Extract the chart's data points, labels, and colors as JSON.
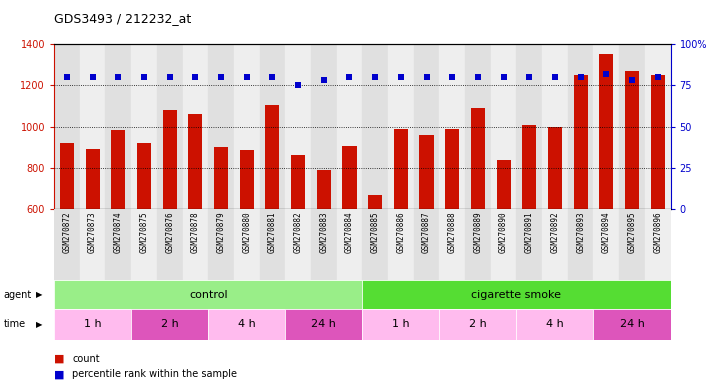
{
  "title": "GDS3493 / 212232_at",
  "samples": [
    "GSM270872",
    "GSM270873",
    "GSM270874",
    "GSM270875",
    "GSM270876",
    "GSM270878",
    "GSM270879",
    "GSM270880",
    "GSM270881",
    "GSM270882",
    "GSM270883",
    "GSM270884",
    "GSM270885",
    "GSM270886",
    "GSM270887",
    "GSM270888",
    "GSM270889",
    "GSM270890",
    "GSM270891",
    "GSM270892",
    "GSM270893",
    "GSM270894",
    "GSM270895",
    "GSM270896"
  ],
  "counts": [
    920,
    890,
    985,
    920,
    1080,
    1060,
    900,
    885,
    1105,
    865,
    790,
    905,
    670,
    990,
    960,
    990,
    1090,
    840,
    1010,
    1000,
    1250,
    1350,
    1270,
    1250
  ],
  "percentiles": [
    80,
    80,
    80,
    80,
    80,
    80,
    80,
    80,
    80,
    75,
    78,
    80,
    80,
    80,
    80,
    80,
    80,
    80,
    80,
    80,
    80,
    82,
    78,
    80
  ],
  "bar_color": "#cc1100",
  "dot_color": "#0000cc",
  "ylim_left": [
    600,
    1400
  ],
  "ylim_right": [
    0,
    100
  ],
  "yticks_left": [
    600,
    800,
    1000,
    1200,
    1400
  ],
  "yticks_right": [
    0,
    25,
    50,
    75,
    100
  ],
  "ytick_labels_right": [
    "0",
    "25",
    "50",
    "75",
    "100%"
  ],
  "gridlines": [
    800,
    1000,
    1200
  ],
  "agent_groups": [
    {
      "text": "control",
      "start": 0,
      "end": 12,
      "color": "#99ee88"
    },
    {
      "text": "cigarette smoke",
      "start": 12,
      "end": 24,
      "color": "#55dd33"
    }
  ],
  "time_groups": [
    {
      "text": "1 h",
      "start": 0,
      "end": 3,
      "color": "#ffbbee"
    },
    {
      "text": "2 h",
      "start": 3,
      "end": 6,
      "color": "#dd55bb"
    },
    {
      "text": "4 h",
      "start": 6,
      "end": 9,
      "color": "#ffbbee"
    },
    {
      "text": "24 h",
      "start": 9,
      "end": 12,
      "color": "#dd55bb"
    },
    {
      "text": "1 h",
      "start": 12,
      "end": 15,
      "color": "#ffbbee"
    },
    {
      "text": "2 h",
      "start": 15,
      "end": 18,
      "color": "#ffbbee"
    },
    {
      "text": "4 h",
      "start": 18,
      "end": 21,
      "color": "#ffbbee"
    },
    {
      "text": "24 h",
      "start": 21,
      "end": 24,
      "color": "#dd55bb"
    }
  ],
  "col_colors": [
    "#e0e0e0",
    "#eeeeee"
  ],
  "bg_color": "#ffffff",
  "left_color": "#cc1100",
  "right_color": "#0000cc"
}
